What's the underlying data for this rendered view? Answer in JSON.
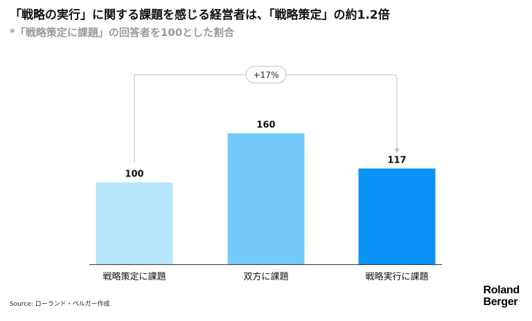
{
  "title": "「戦略の実行」に関する課題を感じる経営者は、「戦略策定」の約1.2倍",
  "subtitle": "*「戦略策定に課題」の回答者を100とした割合",
  "source": "Source: ローランド・ベルガー作成",
  "logo": {
    "line1": "Roland",
    "line2": "Berger"
  },
  "colors": {
    "bar1": "#b7e6fd",
    "bar2": "#75c9fb",
    "bar3": "#0a93f7",
    "connector": "#bdbdbd",
    "axis": "#333333"
  },
  "chart_data": {
    "type": "bar",
    "title": "「戦略の実行」に関する課題を感じる経営者は、「戦略策定」の約1.2倍",
    "subtitle": "*「戦略策定に課題」の回答者を100とした割合",
    "categories": [
      "戦略策定に課題",
      "双方に課題",
      "戦略実行に課題"
    ],
    "values": [
      100,
      160,
      117
    ],
    "ylim": [
      0,
      240
    ],
    "grid": false,
    "legend": "none",
    "annotations": [
      {
        "text": "+17%",
        "from": "戦略策定に課題",
        "to": "戦略実行に課題"
      }
    ]
  }
}
